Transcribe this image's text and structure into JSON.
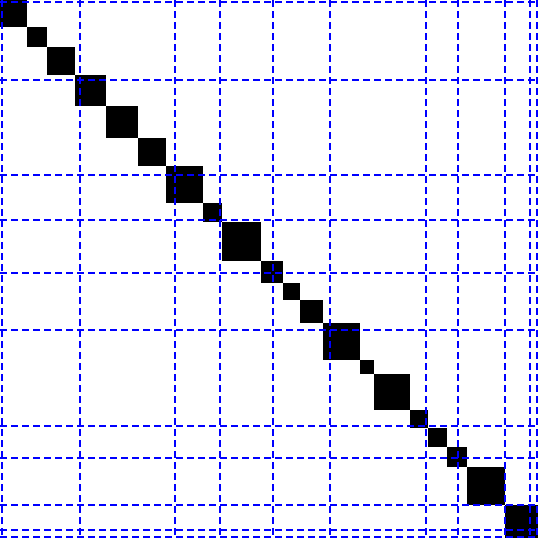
{
  "diagram": {
    "kind": "block-diagonal sparsity pattern with partition grid",
    "colors": {
      "background": "#ffffff",
      "block": "#000000",
      "grid": "#0000ff"
    },
    "grid_style": "dashed",
    "block_count": 21,
    "grid_line_count": 12
  }
}
